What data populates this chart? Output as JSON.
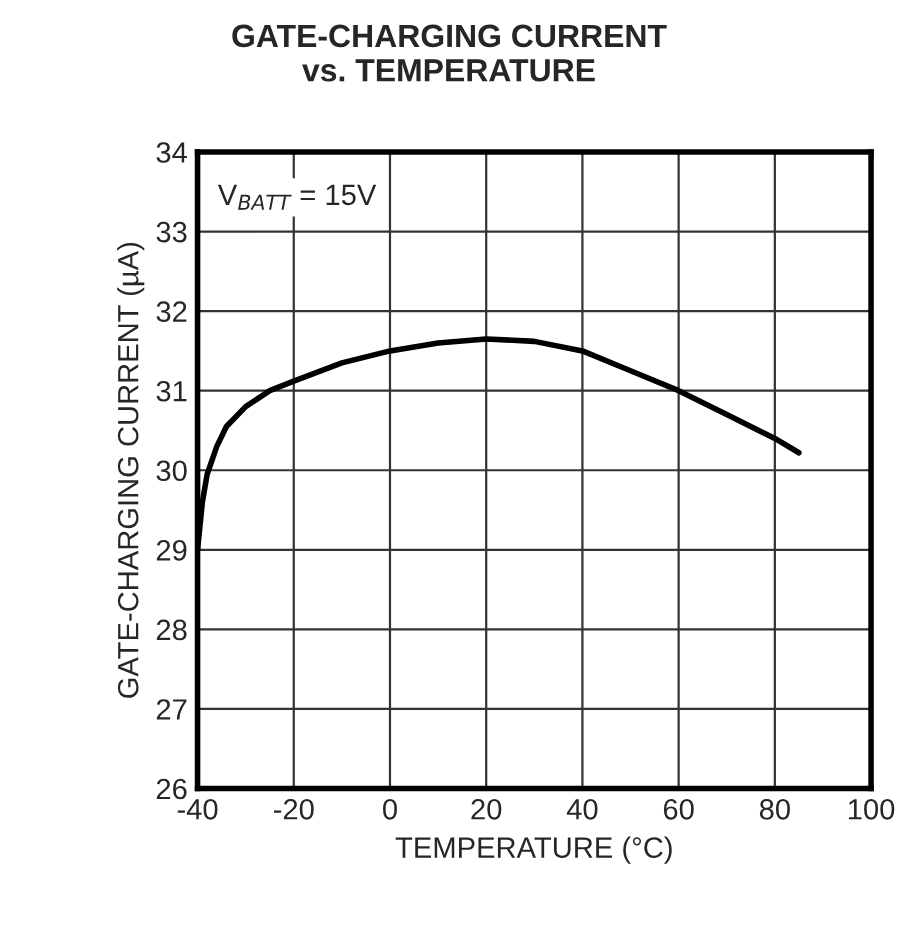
{
  "chart_data": {
    "type": "line",
    "title": "GATE-CHARGING CURRENT\nvs. TEMPERATURE",
    "xlabel": "TEMPERATURE (°C)",
    "ylabel": "GATE-CHARGING CURRENT (µA)",
    "x": [
      -40,
      -39,
      -38,
      -36,
      -34,
      -30,
      -25,
      -20,
      -10,
      0,
      10,
      20,
      30,
      40,
      50,
      60,
      70,
      80,
      85
    ],
    "series": [
      {
        "color": "#000000",
        "values": [
          29.0,
          29.6,
          29.95,
          30.3,
          30.55,
          30.8,
          31.0,
          31.12,
          31.35,
          31.5,
          31.6,
          31.65,
          31.62,
          31.5,
          31.25,
          31.0,
          30.7,
          30.4,
          30.22
        ]
      }
    ],
    "xlim": [
      -40,
      100
    ],
    "xticks": [
      -40,
      -20,
      0,
      20,
      40,
      60,
      80,
      100
    ],
    "ylim": [
      26,
      34
    ],
    "yticks": [
      26,
      27,
      28,
      29,
      30,
      31,
      32,
      33,
      34
    ],
    "grid": true,
    "marker": "none",
    "line_style": "solid",
    "annotations": [
      "V$_{BATT}$ = 15V"
    ]
  }
}
